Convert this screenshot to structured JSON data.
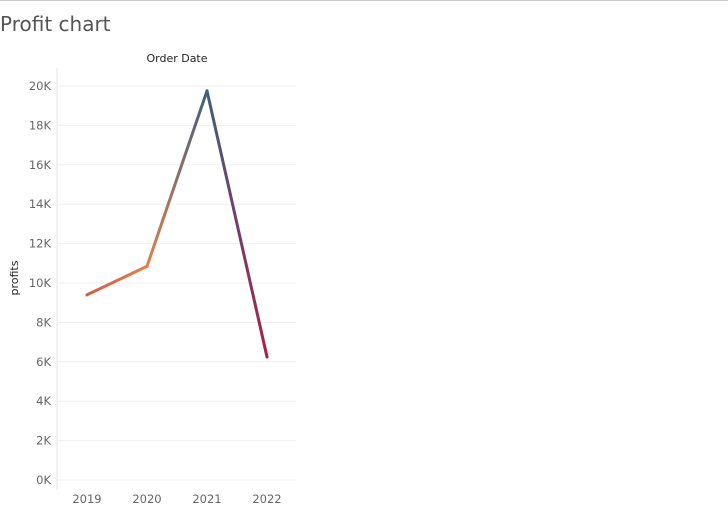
{
  "page": {
    "title": "Profit chart"
  },
  "chart_data": {
    "type": "line",
    "xlabel": "Order Date",
    "ylabel": "profits",
    "categories": [
      "2019",
      "2020",
      "2021",
      "2022"
    ],
    "series": [
      {
        "values": [
          9400,
          10850,
          19750,
          6250
        ]
      }
    ],
    "ylim": [
      0,
      20000
    ],
    "yticks": [
      0,
      2000,
      4000,
      6000,
      8000,
      10000,
      12000,
      14000,
      16000,
      18000,
      20000
    ],
    "ytick_labels": [
      "0K",
      "2K",
      "4K",
      "6K",
      "8K",
      "10K",
      "12K",
      "14K",
      "16K",
      "18K",
      "20K"
    ],
    "grid": true,
    "legend": "none",
    "colors": [
      "#d55c4a",
      "#e0804a",
      "#3e5f7f",
      "#a5214d"
    ]
  }
}
